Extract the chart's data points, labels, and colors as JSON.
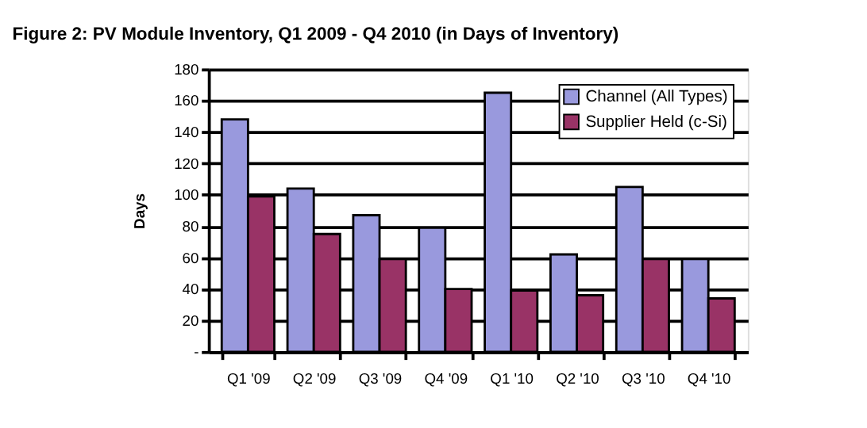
{
  "chart_data": {
    "type": "bar",
    "title": "Figure 2: PV Module Inventory, Q1 2009 - Q4 2010 (in Days of Inventory)",
    "ylabel": "Days",
    "categories": [
      "Q1 '09",
      "Q2 '09",
      "Q3 '09",
      "Q4 '09",
      "Q1 '10",
      "Q2 '10",
      "Q3 '10",
      "Q4 '10"
    ],
    "series": [
      {
        "name": "Channel (All Types)",
        "color": "#9999dd",
        "values": [
          148,
          104,
          87,
          79,
          165,
          62,
          105,
          59
        ]
      },
      {
        "name": "Supplier Held (c-Si)",
        "color": "#993366",
        "values": [
          99,
          75,
          59,
          40,
          39,
          36,
          59,
          34
        ]
      }
    ],
    "ylim": [
      0,
      180
    ],
    "yticks": [
      {
        "value": 0,
        "label": "-"
      },
      20,
      40,
      60,
      80,
      100,
      120,
      140,
      160,
      180
    ],
    "grid": "y",
    "legend": "top right"
  }
}
